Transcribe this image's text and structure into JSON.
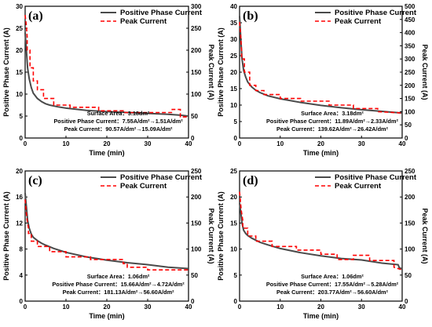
{
  "colors": {
    "positive_phase": "#4a4a4a",
    "peak": "#ff0000",
    "axis": "#000000"
  },
  "chart_data": [
    {
      "type": "line",
      "panel_label": "(a)",
      "xlabel": "Time (min)",
      "ylabel": "Positive Phase Current (A)",
      "y2label": "Peak Current (A)",
      "xlim": [
        0,
        40
      ],
      "ylim": [
        0,
        30
      ],
      "y2lim": [
        0,
        300
      ],
      "xticks": [
        "0",
        "10",
        "20",
        "30",
        "40"
      ],
      "yticks": [
        "0",
        "5",
        "10",
        "15",
        "20",
        "25",
        "30"
      ],
      "y2ticks": [
        "0",
        "50",
        "100",
        "150",
        "200",
        "250",
        "300"
      ],
      "legend": [
        "Positive Phase Current",
        "Peak Current"
      ],
      "annotations": [
        "Surface Area：3.18dm²",
        "Positive Phase Current：7.55A/dm²→1.51A/dm²",
        "Peak Current：90.57A/dm²→15.09A/dm²"
      ],
      "series": [
        {
          "name": "Positive Phase Current",
          "axis": "left",
          "style": "solid",
          "x": [
            0,
            0.3,
            0.6,
            1,
            1.5,
            2,
            3,
            4,
            5,
            6,
            8,
            10,
            15,
            20,
            25,
            30,
            35,
            38,
            40
          ],
          "y": [
            24,
            20,
            16,
            13.5,
            11.5,
            10.2,
            9.0,
            8.3,
            7.8,
            7.5,
            7.1,
            6.8,
            6.3,
            6.0,
            5.8,
            5.6,
            5.4,
            5.2,
            5.0
          ]
        },
        {
          "name": "Peak Current",
          "axis": "right",
          "style": "dashed",
          "x": [
            0,
            0.3,
            0.5,
            0.5,
            1.2,
            1.2,
            2,
            2,
            3,
            3,
            4.5,
            4.5,
            7,
            7,
            11,
            11,
            18,
            18,
            24,
            24,
            36,
            36,
            38,
            38,
            40
          ],
          "y": [
            280,
            255,
            230,
            200,
            200,
            160,
            160,
            130,
            130,
            110,
            110,
            90,
            90,
            75,
            75,
            70,
            70,
            62,
            62,
            58,
            58,
            65,
            65,
            48,
            48
          ]
        }
      ]
    },
    {
      "type": "line",
      "panel_label": "(b)",
      "xlabel": "Time (min)",
      "ylabel": "Positive Phase Current (A)",
      "y2label": "Peak Current (A)",
      "xlim": [
        0,
        40
      ],
      "ylim": [
        0,
        40
      ],
      "y2lim": [
        0,
        500
      ],
      "xticks": [
        "0",
        "10",
        "20",
        "30",
        "40"
      ],
      "yticks": [
        "0",
        "5",
        "10",
        "15",
        "20",
        "25",
        "30",
        "35",
        "40"
      ],
      "y2ticks": [
        "0",
        "50",
        "100",
        "150",
        "200",
        "250",
        "300",
        "350",
        "400",
        "450",
        "500"
      ],
      "legend": [
        "Positive Phase Current",
        "Peak Current"
      ],
      "annotations": [
        "Surface Area：3.18dm²",
        "Positive Phase Current：11.89A/dm²→2.33A/dm²",
        "Peak Current：139.62A/dm²→26.42A/dm²"
      ],
      "series": [
        {
          "name": "Positive Phase Current",
          "axis": "left",
          "style": "solid",
          "x": [
            0,
            0.3,
            0.6,
            1,
            1.5,
            2,
            3,
            4,
            5,
            7,
            10,
            15,
            20,
            25,
            30,
            35,
            40
          ],
          "y": [
            37,
            30,
            24,
            20.5,
            18.5,
            17,
            15.5,
            14.5,
            13.8,
            12.8,
            11.9,
            10.8,
            9.9,
            9.2,
            8.6,
            8.1,
            7.6
          ]
        },
        {
          "name": "Peak Current",
          "axis": "right",
          "style": "dashed",
          "x": [
            0,
            0.3,
            0.5,
            0.5,
            1.2,
            1.2,
            2.5,
            2.5,
            4,
            4,
            6,
            6,
            10,
            10,
            15,
            15,
            22,
            22,
            28,
            28,
            34,
            34,
            40
          ],
          "y": [
            440,
            380,
            330,
            300,
            300,
            250,
            250,
            200,
            200,
            180,
            180,
            165,
            165,
            150,
            150,
            140,
            140,
            125,
            125,
            112,
            112,
            100,
            95
          ]
        }
      ]
    },
    {
      "type": "line",
      "panel_label": "(c)",
      "xlabel": "Time (min)",
      "ylabel": "Positive Phase Current (A)",
      "y2label": "Peak Current (A)",
      "xlim": [
        0,
        40
      ],
      "ylim": [
        0,
        20
      ],
      "y2lim": [
        0,
        250
      ],
      "xticks": [
        "0",
        "10",
        "20",
        "30",
        "40"
      ],
      "yticks": [
        "0",
        "4",
        "8",
        "12",
        "16",
        "20"
      ],
      "y2ticks": [
        "0",
        "50",
        "100",
        "150",
        "200",
        "250"
      ],
      "legend": [
        "Positive Phase Current",
        "Peak Current"
      ],
      "annotations": [
        "Surface Area：1.06dm²",
        "Positive Phase Current：15.66A/dm²→4.72A/dm²",
        "Peak Current：181.13A/dm²→56.60A/dm²"
      ],
      "series": [
        {
          "name": "Positive Phase Current",
          "axis": "left",
          "style": "solid",
          "x": [
            0,
            0.3,
            0.6,
            1,
            1.5,
            2,
            3,
            4,
            5,
            7,
            10,
            15,
            20,
            25,
            30,
            35,
            40
          ],
          "y": [
            16.6,
            14.5,
            12.5,
            11.2,
            10.3,
            9.8,
            9.3,
            8.9,
            8.6,
            8.1,
            7.5,
            6.8,
            6.3,
            5.9,
            5.6,
            5.2,
            5.0
          ]
        },
        {
          "name": "Peak Current",
          "axis": "right",
          "style": "dashed",
          "x": [
            0,
            0.4,
            0.8,
            0.8,
            1.5,
            1.5,
            3,
            3,
            6,
            6,
            10,
            10,
            16,
            16,
            24,
            24,
            25,
            25,
            30,
            30,
            40
          ],
          "y": [
            195,
            160,
            140,
            130,
            130,
            115,
            115,
            105,
            105,
            95,
            95,
            85,
            85,
            80,
            80,
            72,
            72,
            65,
            65,
            60,
            60
          ]
        }
      ]
    },
    {
      "type": "line",
      "panel_label": "(d)",
      "xlabel": "Time (min)",
      "ylabel": "Positive Phase Current (A)",
      "y2label": "Peak Current (A)",
      "xlim": [
        0,
        40
      ],
      "ylim": [
        0,
        25
      ],
      "y2lim": [
        0,
        250
      ],
      "xticks": [
        "0",
        "10",
        "20",
        "30",
        "40"
      ],
      "yticks": [
        "0",
        "5",
        "10",
        "15",
        "20",
        "25"
      ],
      "y2ticks": [
        "0",
        "50",
        "100",
        "150",
        "200",
        "250"
      ],
      "legend": [
        "Positive Phase Current",
        "Peak Current"
      ],
      "annotations": [
        "Surface Area：1.06dm²",
        "Positive Phase Current：17.55A/dm²→5.28A/dm²",
        "Peak Current：203.77A/dm²→56.60A/dm²"
      ],
      "series": [
        {
          "name": "Positive Phase Current",
          "axis": "left",
          "style": "solid",
          "x": [
            0,
            0.3,
            0.6,
            1,
            1.5,
            2,
            3,
            4,
            5,
            7,
            10,
            15,
            20,
            25,
            30,
            35,
            39,
            39.3,
            40
          ],
          "y": [
            18.8,
            17,
            15,
            13.6,
            13.0,
            12.6,
            12.1,
            11.7,
            11.3,
            10.8,
            10.1,
            9.3,
            8.7,
            8.2,
            7.9,
            7.3,
            7.0,
            6.4,
            6.2
          ]
        },
        {
          "name": "Peak Current",
          "axis": "right",
          "style": "dashed",
          "x": [
            0,
            0.4,
            0.8,
            0.8,
            2,
            2,
            4,
            4,
            8,
            8,
            14,
            14,
            20,
            20,
            24,
            24,
            28,
            28,
            32,
            32,
            38,
            38,
            40
          ],
          "y": [
            210,
            175,
            155,
            140,
            140,
            125,
            125,
            115,
            115,
            105,
            105,
            98,
            98,
            90,
            90,
            80,
            80,
            88,
            88,
            78,
            78,
            65,
            60
          ]
        }
      ]
    }
  ]
}
